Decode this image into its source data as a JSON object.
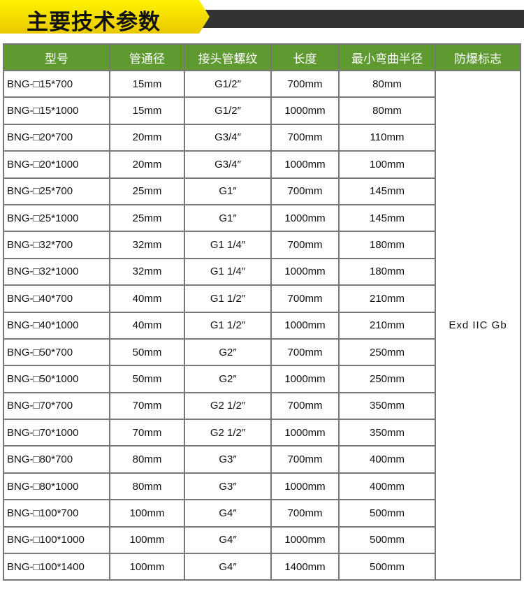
{
  "header": {
    "title": "主要技术参数"
  },
  "table": {
    "headers": [
      "型号",
      "管通径",
      "接头管螺纹",
      "长度",
      "最小弯曲半径",
      "防爆标志"
    ],
    "rows": [
      [
        "BNG-□15*700",
        "15mm",
        "G1/2″",
        "700mm",
        "80mm"
      ],
      [
        "BNG-□15*1000",
        "15mm",
        "G1/2″",
        "1000mm",
        "80mm"
      ],
      [
        "BNG-□20*700",
        "20mm",
        "G3/4″",
        "700mm",
        "110mm"
      ],
      [
        "BNG-□20*1000",
        "20mm",
        "G3/4″",
        "1000mm",
        "100mm"
      ],
      [
        "BNG-□25*700",
        "25mm",
        "G1″",
        "700mm",
        "145mm"
      ],
      [
        "BNG-□25*1000",
        "25mm",
        "G1″",
        "1000mm",
        "145mm"
      ],
      [
        "BNG-□32*700",
        "32mm",
        "G1 1/4″",
        "700mm",
        "180mm"
      ],
      [
        "BNG-□32*1000",
        "32mm",
        "G1 1/4″",
        "1000mm",
        "180mm"
      ],
      [
        "BNG-□40*700",
        "40mm",
        "G1 1/2″",
        "700mm",
        "210mm"
      ],
      [
        "BNG-□40*1000",
        "40mm",
        "G1 1/2″",
        "1000mm",
        "210mm"
      ],
      [
        "BNG-□50*700",
        "50mm",
        "G2″",
        "700mm",
        "250mm"
      ],
      [
        "BNG-□50*1000",
        "50mm",
        "G2″",
        "1000mm",
        "250mm"
      ],
      [
        "BNG-□70*700",
        "70mm",
        "G2 1/2″",
        "700mm",
        "350mm"
      ],
      [
        "BNG-□70*1000",
        "70mm",
        "G2 1/2″",
        "1000mm",
        "350mm"
      ],
      [
        "BNG-□80*700",
        "80mm",
        "G3″",
        "700mm",
        "400mm"
      ],
      [
        "BNG-□80*1000",
        "80mm",
        "G3″",
        "1000mm",
        "400mm"
      ],
      [
        "BNG-□100*700",
        "100mm",
        "G4″",
        "700mm",
        "500mm"
      ],
      [
        "BNG-□100*1000",
        "100mm",
        "G4″",
        "1000mm",
        "500mm"
      ],
      [
        "BNG-□100*1400",
        "100mm",
        "G4″",
        "1400mm",
        "500mm"
      ]
    ],
    "merged": "Exd IIC Gb"
  }
}
